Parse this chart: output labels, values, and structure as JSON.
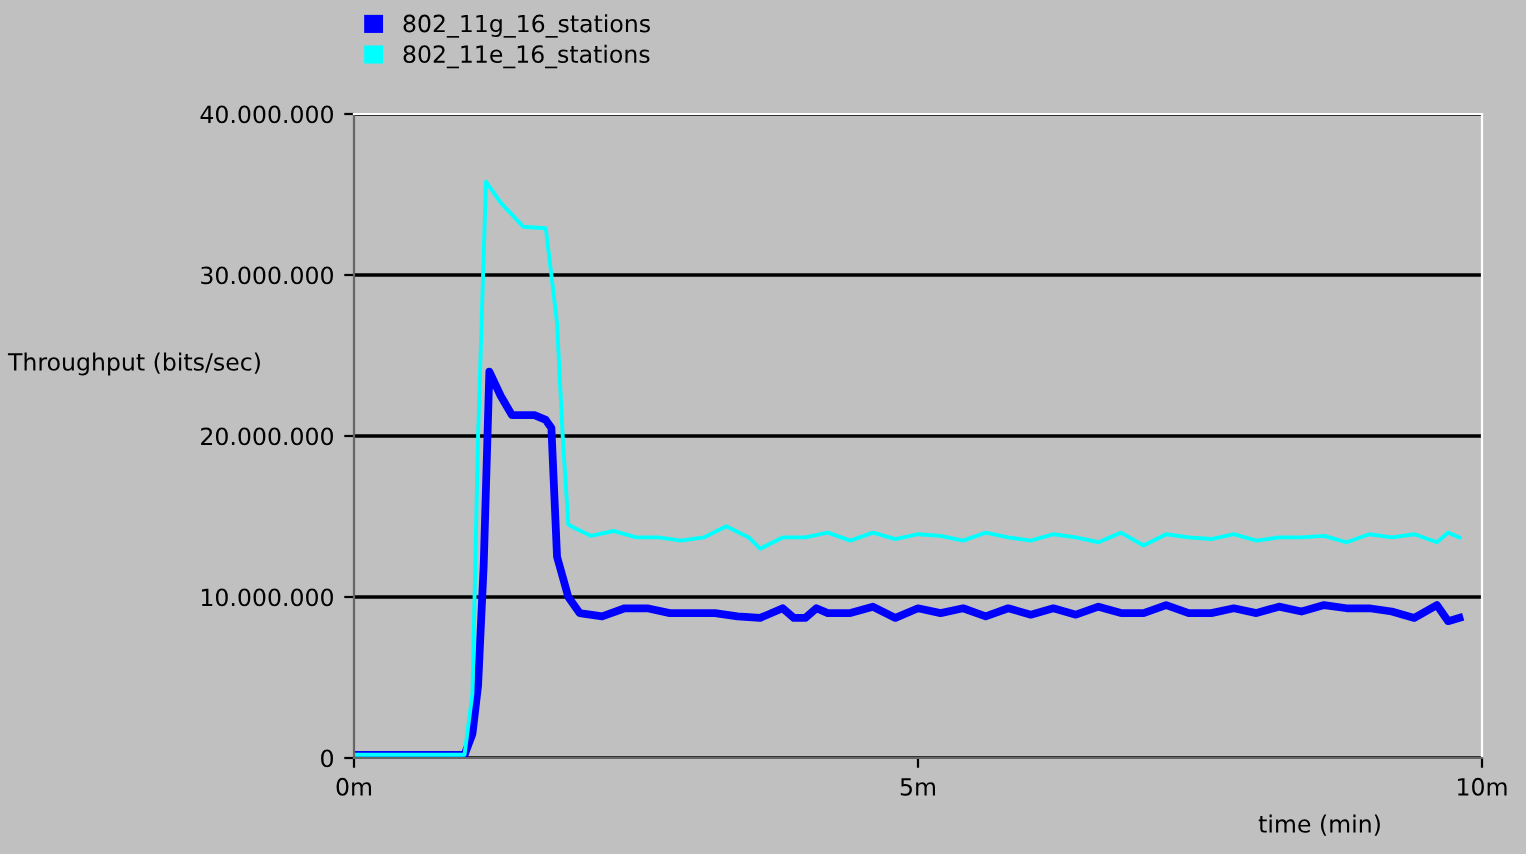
{
  "chart_data": {
    "type": "line",
    "ylabel": "Throughput (bits/sec)",
    "xlabel": "time (min)",
    "xlim": [
      0,
      10
    ],
    "xticks": [
      {
        "value": 0,
        "label": "0m"
      },
      {
        "value": 5,
        "label": "5m"
      },
      {
        "value": 10,
        "label": "10m"
      }
    ],
    "ylim": [
      0,
      40000000
    ],
    "yticks": [
      {
        "value": 0,
        "label": "0"
      },
      {
        "value": 10000000,
        "label": "10.000.000"
      },
      {
        "value": 20000000,
        "label": "20.000.000"
      },
      {
        "value": 30000000,
        "label": "30.000.000"
      },
      {
        "value": 40000000,
        "label": "40.000.000"
      }
    ],
    "grid": "y",
    "legend": "top",
    "marker": "none",
    "line_style": "solid",
    "series": [
      {
        "name": "802_11g_16_stations",
        "color": "#0000ff",
        "x": [
          0,
          0.98,
          1.05,
          1.1,
          1.15,
          1.2,
          1.3,
          1.4,
          1.6,
          1.7,
          1.75,
          1.8,
          1.9,
          2.0,
          2.2,
          2.4,
          2.6,
          2.8,
          3.0,
          3.2,
          3.4,
          3.6,
          3.8,
          3.9,
          4.0,
          4.1,
          4.2,
          4.4,
          4.6,
          4.8,
          5.0,
          5.2,
          5.4,
          5.6,
          5.8,
          6.0,
          6.2,
          6.4,
          6.6,
          6.8,
          7.0,
          7.2,
          7.4,
          7.6,
          7.8,
          8.0,
          8.2,
          8.4,
          8.6,
          8.8,
          9.0,
          9.2,
          9.4,
          9.6,
          9.7,
          9.8
        ],
        "values": [
          200000,
          200000,
          1500000,
          4500000,
          12000000,
          24000000,
          22500000,
          21300000,
          21300000,
          21000000,
          20500000,
          12500000,
          10000000,
          9000000,
          8800000,
          9300000,
          9300000,
          9000000,
          9000000,
          9000000,
          8800000,
          8700000,
          9300000,
          8700000,
          8700000,
          9300000,
          9000000,
          9000000,
          9400000,
          8700000,
          9300000,
          9000000,
          9300000,
          8800000,
          9300000,
          8900000,
          9300000,
          8900000,
          9400000,
          9000000,
          9000000,
          9500000,
          9000000,
          9000000,
          9300000,
          9000000,
          9400000,
          9100000,
          9500000,
          9300000,
          9300000,
          9100000,
          8700000,
          9500000,
          8500000,
          8700000
        ]
      },
      {
        "name": "802_11e_16_stations",
        "color": "#00ffff",
        "x": [
          0,
          0.98,
          1.05,
          1.1,
          1.17,
          1.3,
          1.5,
          1.7,
          1.75,
          1.8,
          1.85,
          1.9,
          1.95,
          2.1,
          2.3,
          2.5,
          2.7,
          2.9,
          3.1,
          3.3,
          3.5,
          3.6,
          3.8,
          4.0,
          4.2,
          4.4,
          4.6,
          4.8,
          5.0,
          5.2,
          5.4,
          5.6,
          5.8,
          6.0,
          6.2,
          6.4,
          6.6,
          6.8,
          7.0,
          7.2,
          7.4,
          7.6,
          7.8,
          8.0,
          8.2,
          8.4,
          8.6,
          8.8,
          9.0,
          9.2,
          9.4,
          9.6,
          9.7,
          9.8
        ],
        "values": [
          200000,
          200000,
          4000000,
          20000000,
          35800000,
          34500000,
          33000000,
          32900000,
          30000000,
          27000000,
          20000000,
          14500000,
          14300000,
          13800000,
          14100000,
          13700000,
          13700000,
          13500000,
          13700000,
          14400000,
          13700000,
          13000000,
          13700000,
          13700000,
          14000000,
          13500000,
          14000000,
          13600000,
          13900000,
          13800000,
          13500000,
          14000000,
          13700000,
          13500000,
          13900000,
          13700000,
          13400000,
          14000000,
          13200000,
          13900000,
          13700000,
          13600000,
          13900000,
          13500000,
          13700000,
          13700000,
          13800000,
          13400000,
          13900000,
          13700000,
          13900000,
          13400000,
          14000000,
          13700000
        ]
      }
    ]
  }
}
